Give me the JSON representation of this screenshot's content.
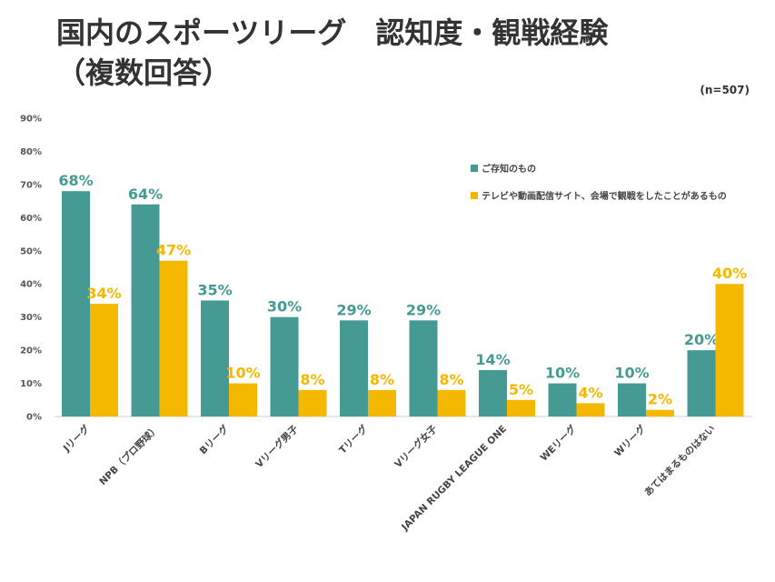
{
  "header": {
    "title_line1": "国内のスポーツリーグ　認知度・観戦経験",
    "title_line2": "（複数回答）",
    "sample_note": "(n=507)"
  },
  "chart_data": {
    "type": "bar",
    "ylim": [
      0,
      90
    ],
    "y_ticks": [
      "0%",
      "10%",
      "20%",
      "30%",
      "40%",
      "50%",
      "60%",
      "70%",
      "80%",
      "90%"
    ],
    "grid": false,
    "legend_position": "top-right",
    "categories": [
      "Jリーグ",
      "NPB（プロ野球）",
      "Bリーグ",
      "Vリーグ男子",
      "Tリーグ",
      "Vリーグ女子",
      "JAPAN RUGBY LEAGUE ONE",
      "WEリーグ",
      "Wリーグ",
      "あてはまるものはない"
    ],
    "series": [
      {
        "name": "ご存知のもの",
        "color": "#459b94",
        "values": [
          68,
          64,
          35,
          30,
          29,
          29,
          14,
          10,
          10,
          20
        ],
        "labels": [
          "68%",
          "64%",
          "35%",
          "30%",
          "29%",
          "29%",
          "14%",
          "10%",
          "10%",
          "20%"
        ]
      },
      {
        "name": "テレビや動画配信サイト、会場で観戦をしたことがあるもの",
        "color": "#f5b800",
        "values": [
          34,
          47,
          10,
          8,
          8,
          8,
          5,
          4,
          2,
          40
        ],
        "labels": [
          "34%",
          "47%",
          "10%",
          "8%",
          "8%",
          "8%",
          "5%",
          "4%",
          "2%",
          "40%"
        ]
      }
    ]
  }
}
